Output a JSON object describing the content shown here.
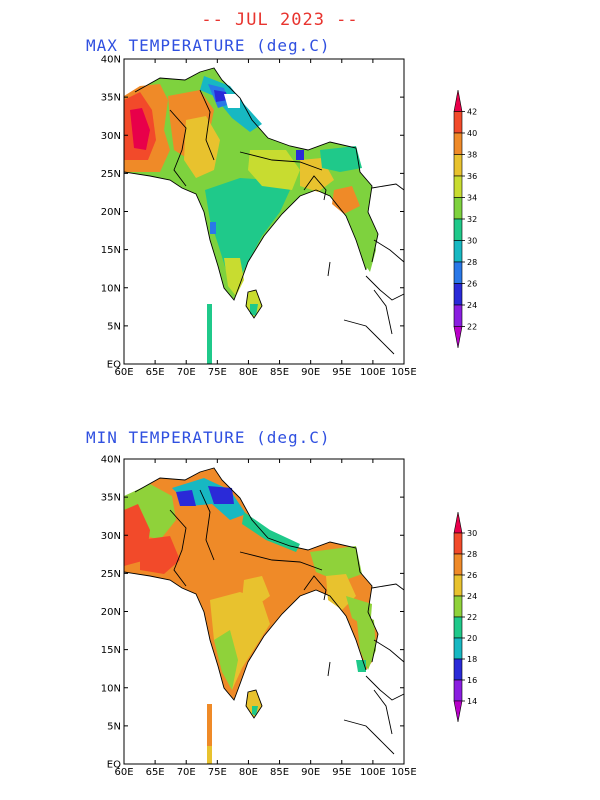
{
  "main_title": "-- JUL 2023 --",
  "panels": [
    {
      "title": "MAX TEMPERATURE (deg.C)",
      "legend": {
        "ticks": [
          "42",
          "40",
          "38",
          "36",
          "34",
          "32",
          "30",
          "28",
          "26",
          "24",
          "22"
        ],
        "colors": [
          "#e8004a",
          "#f24a2a",
          "#ef8a28",
          "#e8c22e",
          "#c8dc30",
          "#7ed23e",
          "#1fc98a",
          "#17b8c2",
          "#2a78e8",
          "#2a2ad8",
          "#8a1ee0",
          "#b800c8"
        ]
      }
    },
    {
      "title": "MIN TEMPERATURE (deg.C)",
      "legend": {
        "ticks": [
          "30",
          "28",
          "26",
          "24",
          "22",
          "20",
          "18",
          "16",
          "14"
        ],
        "colors": [
          "#e8004a",
          "#f24a2a",
          "#ef8a28",
          "#e8c22e",
          "#8fd23a",
          "#1fc98a",
          "#17b8c2",
          "#2a2ad8",
          "#8a1ee0",
          "#b800c8"
        ]
      }
    }
  ],
  "axes": {
    "lat_labels": [
      "40N",
      "35N",
      "30N",
      "25N",
      "20N",
      "15N",
      "10N",
      "5N",
      "EQ"
    ],
    "lon_labels": [
      "60E",
      "65E",
      "70E",
      "75E",
      "80E",
      "85E",
      "90E",
      "95E",
      "100E",
      "105E"
    ]
  }
}
